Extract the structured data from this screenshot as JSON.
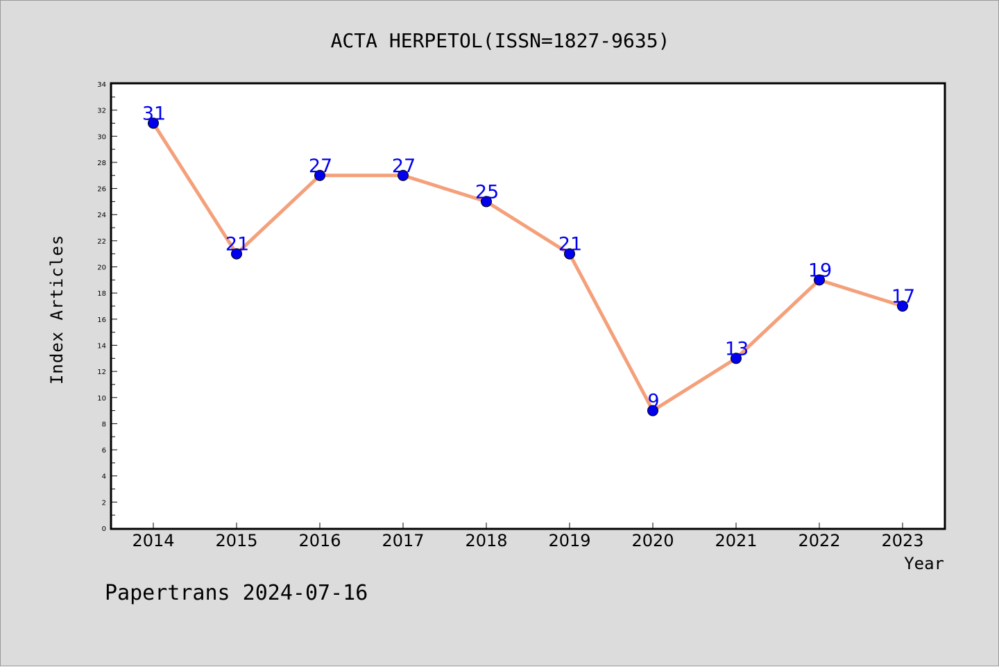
{
  "chart_data": {
    "type": "line",
    "title": "ACTA HERPETOL(ISSN=1827-9635)",
    "xlabel": "Year",
    "ylabel": "Index Articles",
    "categories": [
      "2014",
      "2015",
      "2016",
      "2017",
      "2018",
      "2019",
      "2020",
      "2021",
      "2022",
      "2023"
    ],
    "values": [
      31,
      21,
      27,
      27,
      25,
      21,
      9,
      13,
      19,
      17
    ],
    "data_labels": [
      "31",
      "21",
      "27",
      "27",
      "25",
      "21",
      "9",
      "13",
      "19",
      "17"
    ],
    "ylim": [
      0,
      34
    ],
    "yticks": [
      0,
      2,
      4,
      6,
      8,
      10,
      12,
      14,
      16,
      18,
      20,
      22,
      24,
      26,
      28,
      30,
      32,
      34
    ],
    "ytick_labels": [
      "0",
      "2",
      "4",
      "6",
      "8",
      "10",
      "12",
      "14",
      "16",
      "18",
      "20",
      "22",
      "24",
      "26",
      "28",
      "30",
      "32",
      "34"
    ],
    "grid": false,
    "line_color": "#f4a07a",
    "marker_color": "#0000ee",
    "label_color": "#0000ee"
  },
  "footer": {
    "watermark": "Papertrans 2024-07-16"
  }
}
